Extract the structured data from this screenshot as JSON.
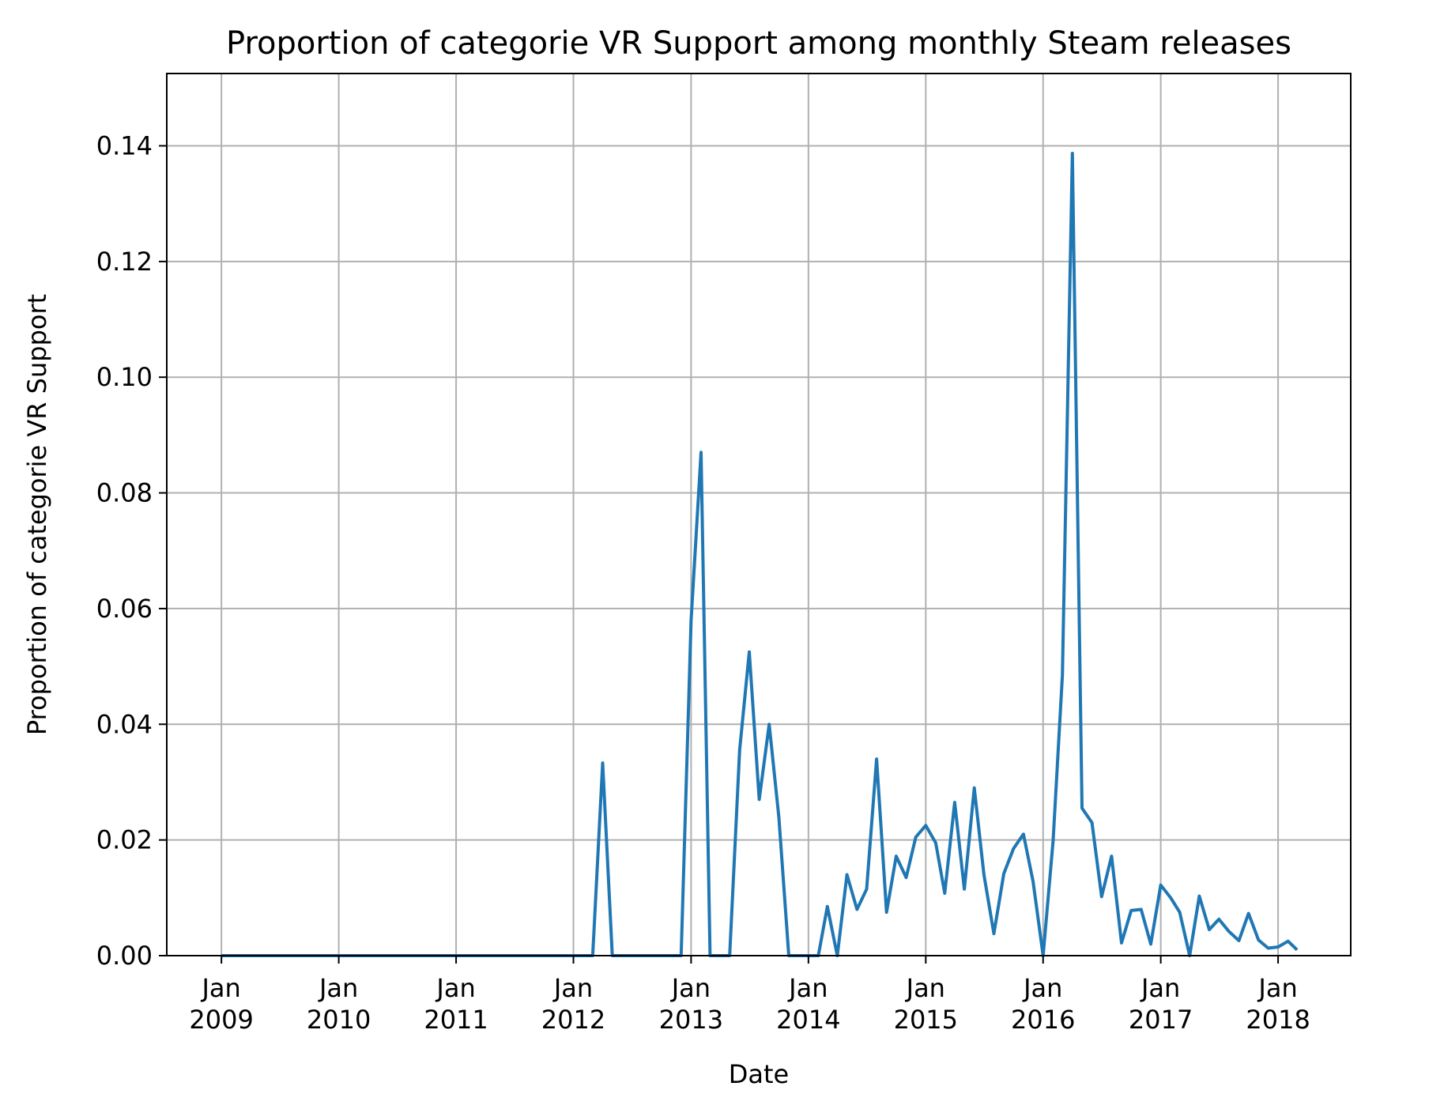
{
  "chart_data": {
    "type": "line",
    "title": "Proportion of categorie VR Support among monthly Steam releases",
    "xlabel": "Date",
    "ylabel": "Proportion of categorie VR Support",
    "xlim": [
      "2008-07-15",
      "2018-08-15"
    ],
    "ylim": [
      0,
      0.1525
    ],
    "grid": true,
    "line_color": "#1f77b4",
    "x_ticks": [
      {
        "date": "2009-01-01",
        "label": [
          "Jan",
          "2009"
        ]
      },
      {
        "date": "2010-01-01",
        "label": [
          "Jan",
          "2010"
        ]
      },
      {
        "date": "2011-01-01",
        "label": [
          "Jan",
          "2011"
        ]
      },
      {
        "date": "2012-01-01",
        "label": [
          "Jan",
          "2012"
        ]
      },
      {
        "date": "2013-01-01",
        "label": [
          "Jan",
          "2013"
        ]
      },
      {
        "date": "2014-01-01",
        "label": [
          "Jan",
          "2014"
        ]
      },
      {
        "date": "2015-01-01",
        "label": [
          "Jan",
          "2015"
        ]
      },
      {
        "date": "2016-01-01",
        "label": [
          "Jan",
          "2016"
        ]
      },
      {
        "date": "2017-01-01",
        "label": [
          "Jan",
          "2017"
        ]
      },
      {
        "date": "2018-01-01",
        "label": [
          "Jan",
          "2018"
        ]
      }
    ],
    "y_ticks": [
      {
        "value": 0.0,
        "label": "0.00"
      },
      {
        "value": 0.02,
        "label": "0.02"
      },
      {
        "value": 0.04,
        "label": "0.04"
      },
      {
        "value": 0.06,
        "label": "0.06"
      },
      {
        "value": 0.08,
        "label": "0.08"
      },
      {
        "value": 0.1,
        "label": "0.10"
      },
      {
        "value": 0.12,
        "label": "0.12"
      },
      {
        "value": 0.14,
        "label": "0.14"
      }
    ],
    "series": [
      {
        "x": [
          "2009-01",
          "2009-02",
          "2009-03",
          "2009-04",
          "2009-05",
          "2009-06",
          "2009-07",
          "2009-08",
          "2009-09",
          "2009-10",
          "2009-11",
          "2009-12",
          "2010-01",
          "2010-02",
          "2010-03",
          "2010-04",
          "2010-05",
          "2010-06",
          "2010-07",
          "2010-08",
          "2010-09",
          "2010-10",
          "2010-11",
          "2010-12",
          "2011-01",
          "2011-02",
          "2011-03",
          "2011-04",
          "2011-05",
          "2011-06",
          "2011-07",
          "2011-08",
          "2011-09",
          "2011-10",
          "2011-11",
          "2011-12",
          "2012-01",
          "2012-02",
          "2012-03",
          "2012-04",
          "2012-05",
          "2012-06",
          "2012-07",
          "2012-08",
          "2012-09",
          "2012-10",
          "2012-11",
          "2012-12",
          "2013-01",
          "2013-02",
          "2013-03",
          "2013-04",
          "2013-05",
          "2013-06",
          "2013-07",
          "2013-08",
          "2013-09",
          "2013-10",
          "2013-11",
          "2013-12",
          "2014-01",
          "2014-02",
          "2014-03",
          "2014-04",
          "2014-05",
          "2014-06",
          "2014-07",
          "2014-08",
          "2014-09",
          "2014-10",
          "2014-11",
          "2014-12",
          "2015-01",
          "2015-02",
          "2015-03",
          "2015-04",
          "2015-05",
          "2015-06",
          "2015-07",
          "2015-08",
          "2015-09",
          "2015-10",
          "2015-11",
          "2015-12",
          "2016-01",
          "2016-02",
          "2016-03",
          "2016-04",
          "2016-05",
          "2016-06",
          "2016-07",
          "2016-08",
          "2016-09",
          "2016-10",
          "2016-11",
          "2016-12",
          "2017-01",
          "2017-02",
          "2017-03",
          "2017-04",
          "2017-05",
          "2017-06",
          "2017-07",
          "2017-08",
          "2017-09",
          "2017-10",
          "2017-11",
          "2017-12",
          "2018-01",
          "2018-02",
          "2018-03"
        ],
        "y": [
          0,
          0,
          0,
          0,
          0,
          0,
          0,
          0,
          0,
          0,
          0,
          0,
          0,
          0,
          0,
          0,
          0,
          0,
          0,
          0,
          0,
          0,
          0,
          0,
          0,
          0,
          0,
          0,
          0,
          0,
          0,
          0,
          0,
          0,
          0,
          0,
          0,
          0,
          0,
          0.0333,
          0,
          0,
          0,
          0,
          0,
          0,
          0,
          0,
          0.058,
          0.087,
          0,
          0,
          0,
          0.0355,
          0.0525,
          0.027,
          0.04,
          0.024,
          0,
          0,
          0,
          0,
          0.0085,
          0,
          0.014,
          0.008,
          0.0115,
          0.034,
          0.0075,
          0.0172,
          0.0135,
          0.0205,
          0.0225,
          0.0195,
          0.0108,
          0.0265,
          0.0115,
          0.029,
          0.014,
          0.0038,
          0.0142,
          0.0185,
          0.021,
          0.0128,
          0,
          0.0198,
          0.0485,
          0.1387,
          0.0255,
          0.023,
          0.0102,
          0.0172,
          0.0022,
          0.0078,
          0.008,
          0.002,
          0.0122,
          0.01,
          0.0075,
          0,
          0.0103,
          0.0045,
          0.0063,
          0.0042,
          0.0026,
          0.0073,
          0.0027,
          0.0013,
          0.0015,
          0.0025,
          0.001
        ]
      }
    ]
  }
}
